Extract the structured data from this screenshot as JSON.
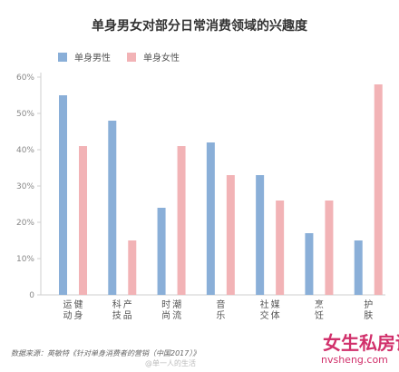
{
  "title": "单身男女对部分日常消费领域的兴趣度",
  "source_note": "数据来源：英敏特《针对单身消费者的营销（中国2017）》",
  "watermark": "@单一人的生活",
  "brand": {
    "main": "女生私房话",
    "sub": "nvsheng.com"
  },
  "colors": {
    "male": "#8aafd8",
    "female": "#f2b3b6",
    "axis": "#cfcfcf",
    "text": "#555555"
  },
  "chart_data": {
    "type": "bar",
    "title": "单身男女对部分日常消费领域的兴趣度",
    "categories": [
      "运动健身",
      "科技产品",
      "时尚潮流",
      "音乐",
      "社交媒体",
      "烹饪",
      "护肤"
    ],
    "series": [
      {
        "name": "单身男性",
        "values": [
          55,
          48,
          24,
          42,
          33,
          17,
          15
        ]
      },
      {
        "name": "单身女性",
        "values": [
          41,
          15,
          41,
          33,
          26,
          26,
          58
        ]
      }
    ],
    "y_ticks": [
      "0",
      "10%",
      "20%",
      "30%",
      "40%",
      "50%",
      "60%"
    ],
    "ylim": [
      0,
      60
    ],
    "legend_position": "top-left",
    "grid": false
  }
}
